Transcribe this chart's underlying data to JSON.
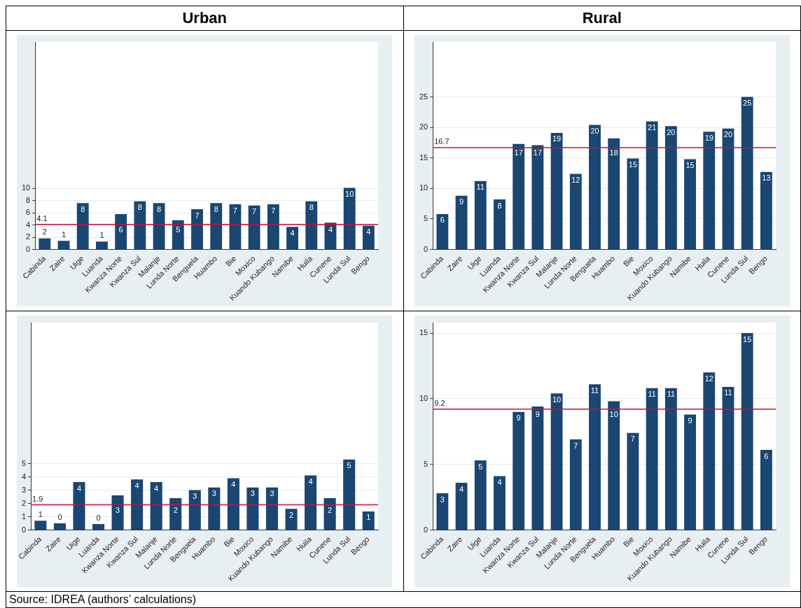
{
  "chart_data": [
    {
      "type": "bar",
      "title": "Urban",
      "categories": [
        "Cabinda",
        "Zaire",
        "Uige",
        "Luanda",
        "Kwanza Norte",
        "Kwanza Sul",
        "Malanje",
        "Lunda Norte",
        "Benguela",
        "Huambo",
        "Bie",
        "Moxico",
        "Kuando Kubango",
        "Namibe",
        "Huila",
        "Cunene",
        "Lunda Sul",
        "Bengo"
      ],
      "values": [
        1.8,
        1.4,
        7.6,
        1.3,
        5.8,
        7.9,
        7.6,
        4.8,
        6.6,
        7.6,
        7.4,
        7.2,
        7.4,
        3.7,
        7.9,
        4.4,
        10.1,
        3.9
      ],
      "value_labels": [
        "2",
        "1",
        "8",
        "1",
        "6",
        "8",
        "8",
        "5",
        "7",
        "8",
        "7",
        "7",
        "7",
        "4",
        "8",
        "4",
        "10",
        "4"
      ],
      "color": "#1a4672",
      "ylim": [
        0,
        34
      ],
      "yticks": [
        0,
        2,
        4,
        6,
        8,
        10
      ],
      "grid": "y",
      "ref_lines": [
        {
          "axis": "y",
          "value": 4.1,
          "label": "4.1",
          "color": "#c8103c"
        }
      ]
    },
    {
      "type": "bar",
      "title": "Rural",
      "categories": [
        "Cabinda",
        "Zaire",
        "Uige",
        "Luanda",
        "Kwanza Norte",
        "Kwanza Sul",
        "Malanje",
        "Lunda Norte",
        "Benguela",
        "Huambo",
        "Bie",
        "Moxico",
        "Kuando Kubango",
        "Namibe",
        "Huila",
        "Cunene",
        "Lunda Sul",
        "Bengo"
      ],
      "values": [
        5.8,
        8.8,
        11.2,
        8.2,
        17.3,
        17.1,
        19.1,
        12.4,
        20.4,
        18.2,
        14.9,
        21.0,
        20.2,
        14.8,
        19.3,
        19.8,
        25.0,
        12.7
      ],
      "value_labels": [
        "6",
        "9",
        "11",
        "8",
        "17",
        "17",
        "19",
        "12",
        "20",
        "18",
        "15",
        "21",
        "20",
        "15",
        "19",
        "20",
        "25",
        "13"
      ],
      "color": "#1a4672",
      "ylim": [
        0,
        34
      ],
      "yticks": [
        0,
        5,
        10,
        15,
        20,
        25
      ],
      "grid": "y",
      "ref_lines": [
        {
          "axis": "y",
          "value": 16.7,
          "label": "16.7",
          "color": "#c8103c"
        }
      ]
    },
    {
      "type": "bar",
      "categories": [
        "Cabinda",
        "Zaire",
        "Uige",
        "Luanda",
        "Kwanza Norte",
        "Kwanza Sul",
        "Malanje",
        "Lunda Norte",
        "Benguela",
        "Huambo",
        "Bie",
        "Moxico",
        "Kuando Kubango",
        "Namibe",
        "Huila",
        "Cunene",
        "Lunda Sul",
        "Bengo"
      ],
      "values": [
        0.7,
        0.5,
        3.6,
        0.45,
        2.6,
        3.8,
        3.6,
        2.4,
        3.0,
        3.2,
        3.9,
        3.2,
        3.2,
        1.6,
        4.1,
        2.4,
        5.3,
        1.4
      ],
      "value_labels": [
        "1",
        "0",
        "4",
        "0",
        "3",
        "4",
        "4",
        "2",
        "3",
        "3",
        "4",
        "3",
        "3",
        "2",
        "4",
        "2",
        "5",
        "1"
      ],
      "color": "#1a4672",
      "ylim": [
        0,
        15.6
      ],
      "yticks": [
        0,
        1,
        2,
        3,
        4,
        5
      ],
      "grid": "y",
      "ref_lines": [
        {
          "axis": "y",
          "value": 1.9,
          "label": "1.9",
          "color": "#c8103c"
        }
      ],
      "annotations": [
        "Source: IDREA (authors’ calculations)"
      ]
    },
    {
      "type": "bar",
      "categories": [
        "Cabinda",
        "Zaire",
        "Uige",
        "Luanda",
        "Kwanza Norte",
        "Kwanza Sul",
        "Malanje",
        "Lunda Norte",
        "Benguela",
        "Huambo",
        "Bie",
        "Moxico",
        "Kuando Kubango",
        "Namibe",
        "Huila",
        "Cunene",
        "Lunda Sul",
        "Bengo"
      ],
      "values": [
        2.8,
        3.6,
        5.3,
        4.1,
        9.0,
        9.4,
        10.4,
        6.9,
        11.1,
        9.8,
        7.4,
        10.8,
        10.8,
        8.8,
        12.0,
        10.9,
        15.0,
        6.1
      ],
      "value_labels": [
        "3",
        "4",
        "5",
        "4",
        "9",
        "9",
        "10",
        "7",
        "11",
        "10",
        "7",
        "11",
        "11",
        "9",
        "12",
        "11",
        "15",
        "6"
      ],
      "color": "#1a4672",
      "ylim": [
        0,
        15.8
      ],
      "yticks": [
        0,
        5,
        10,
        15
      ],
      "grid": "y",
      "ref_lines": [
        {
          "axis": "y",
          "value": 9.2,
          "label": "9.2",
          "color": "#c8103c"
        }
      ]
    }
  ]
}
